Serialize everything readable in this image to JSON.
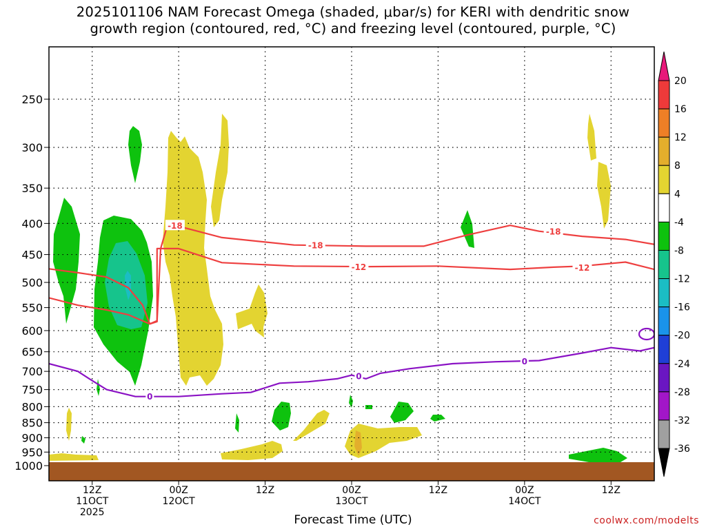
{
  "title_line1": "2025101106 NAM Forecast Omega (shaded, μbar/s) for KERI with dendritic snow",
  "title_line2": "growth region (contoured, red, °C) and freezing level (contoured, purple, °C)",
  "x_axis_title": "Forecast Time (UTC)",
  "watermark": "coolwx.com/modelts",
  "chart_data": {
    "type": "time-height",
    "title": "2025101106 NAM Forecast Omega (shaded, μbar/s) for KERI with dendritic snow growth region (contoured, red, °C) and freezing level (contoured, purple, °C)",
    "xlabel": "Forecast Time (UTC)",
    "ylabel": "Pressure (hPa)",
    "y_ticks": [
      250,
      300,
      350,
      400,
      450,
      500,
      550,
      600,
      650,
      700,
      750,
      800,
      850,
      900,
      950,
      1000
    ],
    "x_hour_range": [
      6,
      90
    ],
    "x_ticks": [
      {
        "hour": 12,
        "lines": [
          "12Z",
          "11OCT",
          "2025"
        ]
      },
      {
        "hour": 24,
        "lines": [
          "00Z",
          "12OCT"
        ]
      },
      {
        "hour": 36,
        "lines": [
          "12Z"
        ]
      },
      {
        "hour": 48,
        "lines": [
          "00Z",
          "13OCT"
        ]
      },
      {
        "hour": 60,
        "lines": [
          "12Z"
        ]
      },
      {
        "hour": 72,
        "lines": [
          "00Z",
          "14OCT"
        ]
      },
      {
        "hour": 84,
        "lines": [
          "12Z"
        ]
      }
    ],
    "colorbar": {
      "labels": [
        "20",
        "16",
        "12",
        "8",
        "4",
        "-4",
        "-8",
        "-12",
        "-16",
        "-20",
        "-24",
        "-28",
        "-32",
        "-36"
      ],
      "colors": [
        "#e8197a",
        "#ee3a3a",
        "#ee7f26",
        "#e3ae2c",
        "#e3d431",
        "#ffffff",
        "#0ec20e",
        "#16c48c",
        "#1bbdc4",
        "#1a93ea",
        "#1f3fd6",
        "#6a16c2",
        "#a216c8",
        "#a0a0a0",
        "#000000"
      ]
    },
    "contours": [
      {
        "name": "dendritic-minus18",
        "label": "-18",
        "color": "#ee3f3f",
        "points": [
          [
            6,
            475
          ],
          [
            10,
            482
          ],
          [
            14,
            490
          ],
          [
            17,
            510
          ],
          [
            19,
            545
          ],
          [
            20,
            585
          ],
          [
            21,
            578
          ],
          [
            21.5,
            440
          ],
          [
            22.5,
            400
          ],
          [
            30,
            422
          ],
          [
            40,
            434
          ],
          [
            50,
            436
          ],
          [
            58,
            436
          ],
          [
            64,
            418
          ],
          [
            70,
            403
          ],
          [
            74,
            412
          ],
          [
            80,
            420
          ],
          [
            86,
            425
          ],
          [
            90,
            433
          ]
        ],
        "labels_at": [
          [
            23.5,
            403
          ],
          [
            43,
            434
          ],
          [
            76,
            412
          ]
        ]
      },
      {
        "name": "dendritic-minus12",
        "label": "-12",
        "color": "#ee3f3f",
        "points": [
          [
            6,
            530
          ],
          [
            10,
            545
          ],
          [
            14,
            555
          ],
          [
            17,
            565
          ],
          [
            20,
            585
          ],
          [
            21,
            580
          ],
          [
            21,
            440
          ],
          [
            24,
            440
          ],
          [
            30,
            464
          ],
          [
            40,
            470
          ],
          [
            50,
            471
          ],
          [
            60,
            470
          ],
          [
            70,
            476
          ],
          [
            76,
            472
          ],
          [
            80,
            470
          ],
          [
            86,
            463
          ],
          [
            90,
            476
          ]
        ],
        "labels_at": [
          [
            49,
            471
          ],
          [
            80,
            472
          ]
        ]
      },
      {
        "name": "freezing-level-0",
        "label": "0",
        "color": "#8a12c4",
        "points": [
          [
            6,
            680
          ],
          [
            10,
            700
          ],
          [
            12,
            725
          ],
          [
            14,
            750
          ],
          [
            18,
            770
          ],
          [
            24,
            770
          ],
          [
            30,
            762
          ],
          [
            34,
            758
          ],
          [
            38,
            732
          ],
          [
            42,
            728
          ],
          [
            46,
            720
          ],
          [
            48,
            710
          ],
          [
            50,
            720
          ],
          [
            52,
            705
          ],
          [
            56,
            693
          ],
          [
            62,
            680
          ],
          [
            68,
            675
          ],
          [
            74,
            672
          ],
          [
            80,
            653
          ],
          [
            84,
            640
          ],
          [
            88,
            648
          ],
          [
            90,
            640
          ]
        ],
        "labels_at": [
          [
            20,
            769
          ],
          [
            49,
            712
          ],
          [
            72,
            673
          ]
        ]
      }
    ],
    "omega_regions": [
      {
        "name": "green-region-left",
        "value": -6,
        "color": "#0ec20e"
      },
      {
        "name": "green-region-main",
        "value": -6,
        "color": "#0ec20e"
      },
      {
        "name": "teal-core",
        "value": -10,
        "color": "#16c48c"
      },
      {
        "name": "cyan-core",
        "value": -14,
        "color": "#1bbdc4"
      },
      {
        "name": "yellow-column-main",
        "value": 6,
        "color": "#e3d431"
      },
      {
        "name": "yellow-right-streaks",
        "value": 6,
        "color": "#e3d431"
      },
      {
        "name": "orange-spot",
        "value": 10,
        "color": "#e3ae2c"
      }
    ],
    "surface_band": {
      "name": "ground",
      "color": "#a25722"
    }
  }
}
